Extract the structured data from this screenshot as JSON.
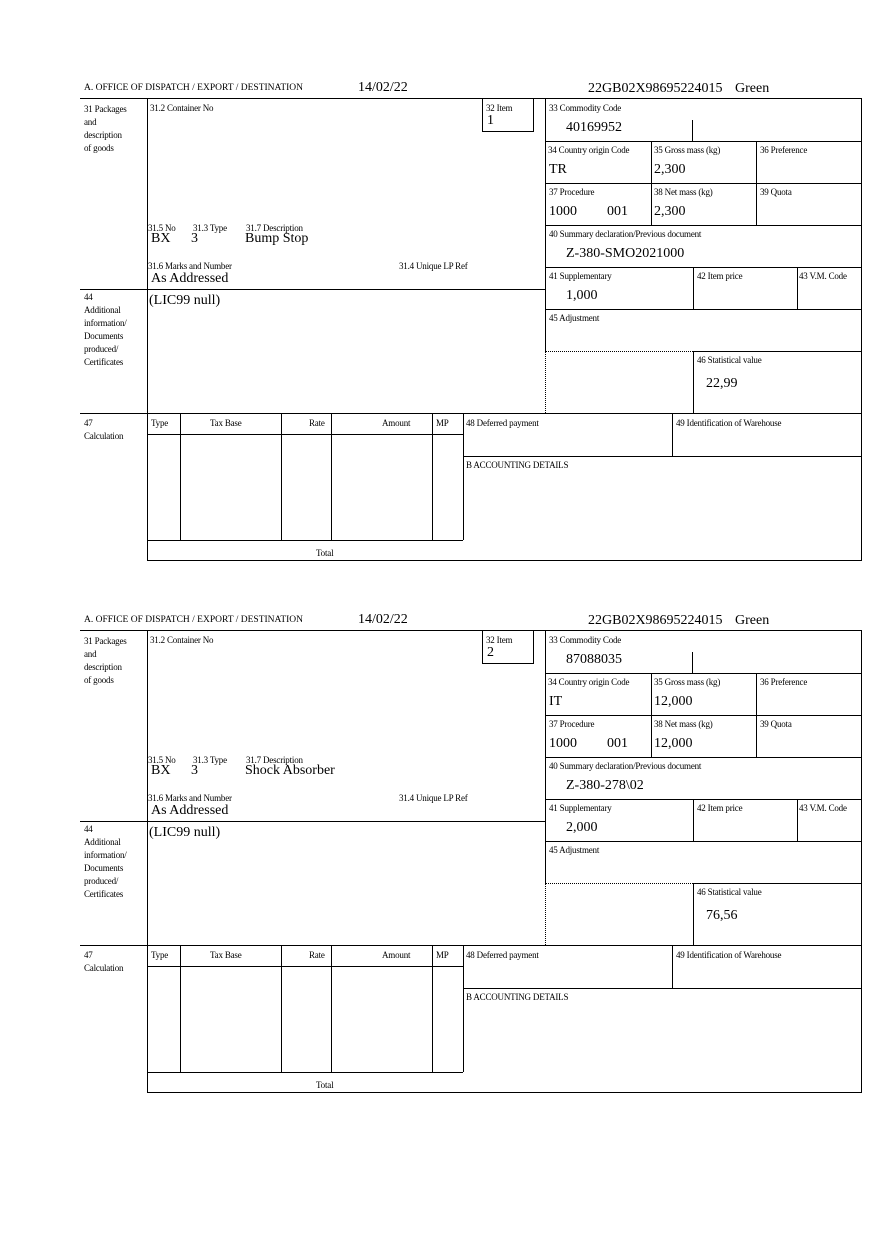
{
  "labels": {
    "office": "A.  OFFICE OF DISPATCH / EXPORT / DESTINATION",
    "packages": [
      "31 Packages",
      "and",
      "description",
      "of goods"
    ],
    "container_no": "31.2 Container No",
    "item": "32 Item",
    "no": "31.5 No",
    "type": "31.3 Type",
    "description": "31.7 Description",
    "marks": "31.6 Marks and Number",
    "unique_lp": "31.4 Unique LP Ref",
    "additional": [
      "44",
      "Additional",
      "information/",
      "Documents",
      "produced/",
      "Certificates"
    ],
    "commodity": "33 Commodity Code",
    "country": "34 Country origin Code",
    "gross": "35 Gross mass (kg)",
    "preference": "36 Preference",
    "procedure": "37 Procedure",
    "net": "38 Net mass (kg)",
    "quota": "39 Quota",
    "summary": "40 Summary declaration/Previous document",
    "supplementary": "41 Supplementary",
    "item_price": "42 Item price",
    "vm_code": "43 V.M. Code",
    "adjustment": "45 Adjustment",
    "statistical": "46 Statistical value",
    "calc": [
      "47",
      "Calculation"
    ],
    "calc_cols": [
      "Type",
      "Tax Base",
      "Rate",
      "Amount",
      "MP"
    ],
    "total": "Total",
    "deferred": "48 Deferred payment",
    "warehouse": "49 Identification of Warehouse",
    "accounting": "B ACCOUNTING DETAILS"
  },
  "items": [
    {
      "date": "14/02/22",
      "reference": "22GB02X98695224015",
      "route": "Green",
      "item_no": "1",
      "no": "BX",
      "type": "3",
      "description": "Bump Stop",
      "marks": "As Addressed",
      "additional_info": "(LIC99 null)",
      "commodity": "40169952",
      "country": "TR",
      "gross": "2,300",
      "procedure": "1000",
      "procedure_add": "001",
      "net": "2,300",
      "summary": "Z-380-SMO2021000",
      "supplementary": "1,000",
      "statistical": "22,99"
    },
    {
      "date": "14/02/22",
      "reference": "22GB02X98695224015",
      "route": "Green",
      "item_no": "2",
      "no": "BX",
      "type": "3",
      "description": "Shock Absorber",
      "marks": "As Addressed",
      "additional_info": "(LIC99 null)",
      "commodity": "87088035",
      "country": "IT",
      "gross": "12,000",
      "procedure": "1000",
      "procedure_add": "001",
      "net": "12,000",
      "summary": "Z-380-278\\02",
      "supplementary": "2,000",
      "statistical": "76,56"
    }
  ]
}
